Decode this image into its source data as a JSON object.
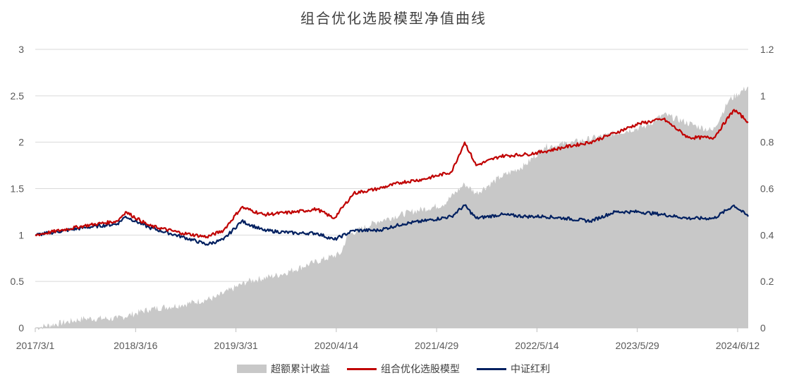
{
  "chart_data": {
    "type": "line",
    "title": "组合优化选股模型净值曲线",
    "x_ticks": [
      "2017/3/1",
      "2018/3/16",
      "2019/3/31",
      "2020/4/14",
      "2021/4/29",
      "2022/5/14",
      "2023/5/29",
      "2024/6/12"
    ],
    "y_left_ticks": [
      "0",
      "0.5",
      "1",
      "1.5",
      "2",
      "2.5",
      "3"
    ],
    "y_right_ticks": [
      "0",
      "0.2",
      "0.4",
      "0.6",
      "0.8",
      "1",
      "1.2"
    ],
    "y_left_range": [
      0,
      3
    ],
    "y_right_range": [
      0,
      1.2
    ],
    "x_range": [
      "2017-03-01",
      "2024-06-12"
    ],
    "grid": "horizontal",
    "legend_position": "bottom",
    "series": [
      {
        "name": "超额累计收益",
        "type": "area",
        "axis": "right",
        "color": "#c8c8c8",
        "x": [
          "2017-03-01",
          "2017-09-01",
          "2018-01-01",
          "2018-05-01",
          "2018-09-01",
          "2019-01-01",
          "2019-05-01",
          "2019-09-01",
          "2020-01-01",
          "2020-04-14",
          "2020-05-10",
          "2020-09-01",
          "2021-01-01",
          "2021-04-29",
          "2021-07-20",
          "2021-09-01",
          "2021-12-01",
          "2022-03-01",
          "2022-05-14",
          "2022-09-01",
          "2023-01-01",
          "2023-05-29",
          "2023-08-01",
          "2023-12-01",
          "2024-02-01",
          "2024-04-01",
          "2024-06-12"
        ],
        "values": [
          0.0,
          0.04,
          0.04,
          0.08,
          0.1,
          0.13,
          0.2,
          0.23,
          0.28,
          0.32,
          0.4,
          0.46,
          0.5,
          0.53,
          0.62,
          0.58,
          0.65,
          0.7,
          0.78,
          0.8,
          0.83,
          0.87,
          0.92,
          0.87,
          0.85,
          0.98,
          1.04
        ]
      },
      {
        "name": "组合优化选股模型",
        "type": "line",
        "axis": "left",
        "color": "#c00000",
        "x": [
          "2017-03-01",
          "2017-09-01",
          "2018-01-01",
          "2018-02-01",
          "2018-05-01",
          "2018-09-01",
          "2018-12-01",
          "2019-02-01",
          "2019-04-10",
          "2019-07-01",
          "2019-11-01",
          "2020-01-15",
          "2020-03-20",
          "2020-06-01",
          "2020-09-01",
          "2020-12-01",
          "2021-02-15",
          "2021-06-01",
          "2021-07-20",
          "2021-09-01",
          "2021-12-01",
          "2022-03-10",
          "2022-05-14",
          "2022-08-01",
          "2022-11-01",
          "2023-02-01",
          "2023-05-01",
          "2023-08-01",
          "2023-11-01",
          "2024-02-05",
          "2024-04-20",
          "2024-06-12"
        ],
        "values": [
          1.0,
          1.1,
          1.15,
          1.25,
          1.1,
          1.02,
          0.98,
          1.05,
          1.3,
          1.22,
          1.25,
          1.28,
          1.18,
          1.45,
          1.5,
          1.57,
          1.6,
          1.68,
          2.0,
          1.75,
          1.85,
          1.87,
          1.9,
          1.95,
          2.0,
          2.1,
          2.2,
          2.25,
          2.05,
          2.05,
          2.35,
          2.22
        ]
      },
      {
        "name": "中证红利",
        "type": "line",
        "axis": "left",
        "color": "#002060",
        "x": [
          "2017-03-01",
          "2017-09-01",
          "2018-01-01",
          "2018-02-01",
          "2018-05-01",
          "2018-09-01",
          "2018-12-01",
          "2019-02-01",
          "2019-04-10",
          "2019-07-01",
          "2019-11-01",
          "2020-01-15",
          "2020-03-20",
          "2020-06-01",
          "2020-09-01",
          "2020-12-01",
          "2021-02-15",
          "2021-06-01",
          "2021-07-20",
          "2021-09-01",
          "2021-12-01",
          "2022-03-10",
          "2022-05-14",
          "2022-08-01",
          "2022-11-01",
          "2023-02-01",
          "2023-05-01",
          "2023-08-01",
          "2023-11-01",
          "2024-02-05",
          "2024-04-20",
          "2024-06-12"
        ],
        "values": [
          1.0,
          1.08,
          1.12,
          1.2,
          1.08,
          0.98,
          0.9,
          0.95,
          1.15,
          1.05,
          1.02,
          1.02,
          0.95,
          1.05,
          1.05,
          1.12,
          1.15,
          1.2,
          1.32,
          1.18,
          1.22,
          1.2,
          1.2,
          1.18,
          1.15,
          1.25,
          1.25,
          1.22,
          1.18,
          1.18,
          1.32,
          1.2
        ]
      }
    ]
  }
}
